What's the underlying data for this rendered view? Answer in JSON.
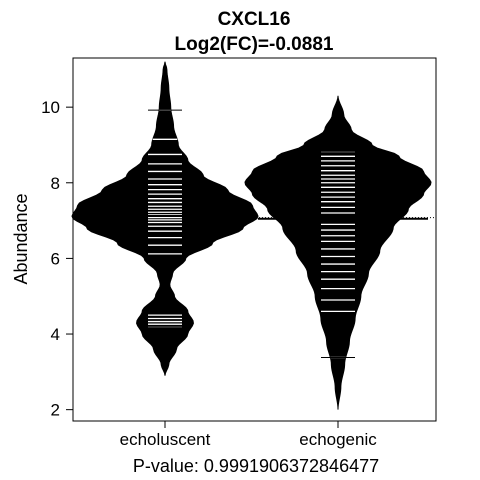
{
  "chart_data": {
    "type": "beanplot",
    "title": "CXCL16",
    "subtitle": "Log2(FC)=-0.0881",
    "ylabel": "Abundance",
    "xlabel": "P-value: 0.9991906372846477",
    "ylim": [
      1.7,
      11.3
    ],
    "yticks": [
      2,
      4,
      6,
      8,
      10
    ],
    "overall_mean": 7.08,
    "grid": false,
    "categories": [
      "echoluscent",
      "echogenic"
    ],
    "beans": [
      {
        "category": "echoluscent",
        "mean": 7.12,
        "range": [
          2.9,
          11.2
        ],
        "density": [
          [
            2.9,
            0.0
          ],
          [
            3.2,
            0.04
          ],
          [
            3.6,
            0.12
          ],
          [
            4.0,
            0.24
          ],
          [
            4.3,
            0.3
          ],
          [
            4.6,
            0.24
          ],
          [
            5.0,
            0.1
          ],
          [
            5.3,
            0.05
          ],
          [
            5.6,
            0.08
          ],
          [
            6.0,
            0.22
          ],
          [
            6.4,
            0.5
          ],
          [
            6.8,
            0.82
          ],
          [
            7.1,
            0.98
          ],
          [
            7.4,
            0.92
          ],
          [
            7.8,
            0.66
          ],
          [
            8.2,
            0.4
          ],
          [
            8.6,
            0.24
          ],
          [
            9.0,
            0.14
          ],
          [
            9.5,
            0.09
          ],
          [
            10.0,
            0.06
          ],
          [
            10.5,
            0.04
          ],
          [
            11.0,
            0.02
          ],
          [
            11.2,
            0.0
          ]
        ],
        "observations": [
          4.18,
          4.26,
          4.33,
          4.41,
          4.5,
          6.12,
          6.35,
          6.55,
          6.72,
          6.85,
          6.95,
          7.02,
          7.08,
          7.15,
          7.22,
          7.3,
          7.38,
          7.48,
          7.58,
          7.7,
          7.82,
          7.95,
          8.1,
          8.3,
          8.5,
          8.75,
          9.15,
          9.92
        ]
      },
      {
        "category": "echogenic",
        "mean": 7.05,
        "range": [
          2.0,
          10.3
        ],
        "density": [
          [
            2.0,
            0.0
          ],
          [
            2.6,
            0.03
          ],
          [
            3.2,
            0.07
          ],
          [
            3.8,
            0.12
          ],
          [
            4.4,
            0.18
          ],
          [
            5.0,
            0.24
          ],
          [
            5.6,
            0.32
          ],
          [
            6.2,
            0.44
          ],
          [
            6.8,
            0.58
          ],
          [
            7.3,
            0.74
          ],
          [
            7.7,
            0.9
          ],
          [
            8.0,
            0.98
          ],
          [
            8.3,
            0.9
          ],
          [
            8.7,
            0.64
          ],
          [
            9.0,
            0.36
          ],
          [
            9.4,
            0.14
          ],
          [
            9.8,
            0.06
          ],
          [
            10.3,
            0.0
          ]
        ],
        "observations": [
          3.38,
          4.6,
          4.9,
          5.2,
          5.45,
          5.65,
          5.85,
          6.05,
          6.25,
          6.45,
          6.6,
          6.75,
          6.9,
          7.05,
          7.2,
          7.35,
          7.5,
          7.62,
          7.75,
          7.88,
          8.0,
          8.1,
          8.2,
          8.32,
          8.45,
          8.58,
          8.7,
          8.82
        ]
      }
    ]
  }
}
